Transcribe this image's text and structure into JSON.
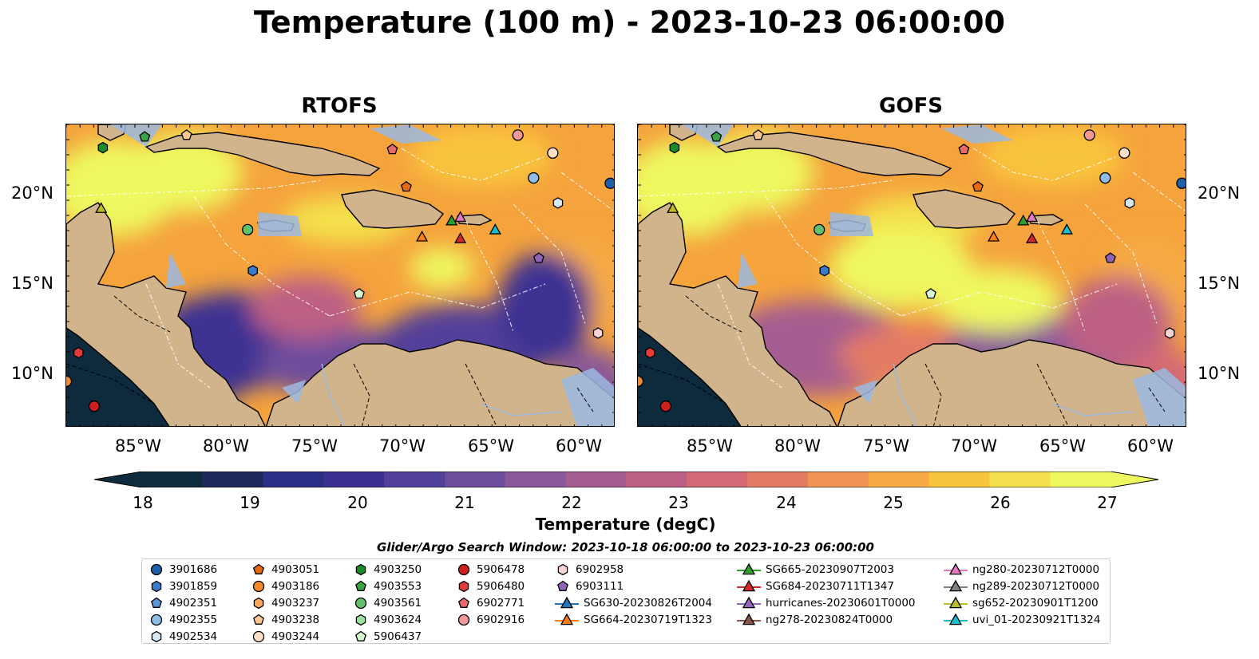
{
  "title": "Temperature (100 m) - 2023-10-23 06:00:00",
  "panels": [
    {
      "name": "RTOFS"
    },
    {
      "name": "GOFS"
    }
  ],
  "lat_labels": [
    "20°N",
    "15°N",
    "10°N"
  ],
  "lon_labels": [
    "85°W",
    "80°W",
    "75°W",
    "70°W",
    "65°W",
    "60°W"
  ],
  "colorbar": {
    "label": "Temperature (degC)",
    "ticks": [
      "18",
      "19",
      "20",
      "21",
      "22",
      "23",
      "24",
      "25",
      "26",
      "27"
    ],
    "range": [
      18,
      27
    ],
    "colors": [
      "#0e2a3d",
      "#1f2a5a",
      "#2b2f86",
      "#3c3192",
      "#53409a",
      "#6e4e9c",
      "#8a5899",
      "#a45d90",
      "#bd6184",
      "#d36a75",
      "#e47c63",
      "#f19352",
      "#f7aa45",
      "#f9c43e",
      "#f4e04c",
      "#eef85f"
    ]
  },
  "legend": {
    "title": "Glider/Argo Search Window: 2023-10-18 06:00:00 to 2023-10-23 06:00:00",
    "columns": [
      [
        {
          "label": "3901686",
          "marker": "circle",
          "color": "#1f5fa8"
        },
        {
          "label": "3901859",
          "marker": "hexagon",
          "color": "#3a7bc8"
        },
        {
          "label": "4902351",
          "marker": "pentagon",
          "color": "#5b95d6"
        },
        {
          "label": "4902355",
          "marker": "circle",
          "color": "#8ebde9"
        },
        {
          "label": "4902534",
          "marker": "hexagon",
          "color": "#d7e8f7"
        }
      ],
      [
        {
          "label": "4903051",
          "marker": "pentagon",
          "color": "#e86a10"
        },
        {
          "label": "4903186",
          "marker": "circle",
          "color": "#f58a2c"
        },
        {
          "label": "4903237",
          "marker": "hexagon",
          "color": "#f9a55e"
        },
        {
          "label": "4903238",
          "marker": "pentagon",
          "color": "#fbc593"
        },
        {
          "label": "4903244",
          "marker": "circle",
          "color": "#fde0c5"
        }
      ],
      [
        {
          "label": "4903250",
          "marker": "hexagon",
          "color": "#1e8a2a"
        },
        {
          "label": "4903553",
          "marker": "pentagon",
          "color": "#3aa344"
        },
        {
          "label": "4903561",
          "marker": "circle",
          "color": "#62c06a"
        },
        {
          "label": "4903624",
          "marker": "hexagon",
          "color": "#9be09e"
        },
        {
          "label": "5906437",
          "marker": "pentagon",
          "color": "#d6f7cf"
        }
      ],
      [
        {
          "label": "5906478",
          "marker": "circle",
          "color": "#cc1f1f"
        },
        {
          "label": "5906480",
          "marker": "hexagon",
          "color": "#e23b3b"
        },
        {
          "label": "6902771",
          "marker": "pentagon",
          "color": "#e96a6a"
        },
        {
          "label": "6902916",
          "marker": "circle",
          "color": "#f29898"
        }
      ],
      [
        {
          "label": "6902958",
          "marker": "hexagon",
          "color": "#fbd5d5"
        },
        {
          "label": "6903111",
          "marker": "pentagon",
          "color": "#8e63b8"
        },
        {
          "label": "SG630-20230826T2004",
          "marker": "triangle-line",
          "color": "#1f77b4"
        },
        {
          "label": "SG664-20230719T1323",
          "marker": "triangle-line",
          "color": "#ff7f0e"
        }
      ],
      [
        {
          "label": "SG665-20230907T2003",
          "marker": "triangle-line",
          "color": "#2ca02c"
        },
        {
          "label": "SG684-20230711T1347",
          "marker": "triangle-line",
          "color": "#d62728"
        },
        {
          "label": "hurricanes-20230601T0000",
          "marker": "triangle-line",
          "color": "#9467bd"
        },
        {
          "label": "ng278-20230824T0000",
          "marker": "triangle-line",
          "color": "#8c564b"
        }
      ],
      [
        {
          "label": "ng280-20230712T0000",
          "marker": "triangle-line",
          "color": "#e377c2"
        },
        {
          "label": "ng289-20230712T0000",
          "marker": "triangle-line",
          "color": "#7f7f7f"
        },
        {
          "label": "sg652-20230901T1200",
          "marker": "triangle-line",
          "color": "#bcbd22"
        },
        {
          "label": "uvi_01-20230921T1324",
          "marker": "triangle-line",
          "color": "#17becf"
        }
      ]
    ]
  },
  "map_colors": {
    "ocean_warm": "#f5a33c",
    "land": "#d2b48c",
    "shelf": "#9bb8e0",
    "deep_pacific": "#0e2a3d"
  },
  "map_extent": {
    "lon": [
      -89.5,
      -58
    ],
    "lat": [
      7,
      24
    ]
  },
  "stations": [
    {
      "id": "4903250",
      "lon": -87.4,
      "lat": 22.7
    },
    {
      "id": "4903553",
      "lon": -85.0,
      "lat": 23.3
    },
    {
      "id": "4903238",
      "lon": -82.6,
      "lat": 23.4
    },
    {
      "id": "6902916",
      "lon": -63.6,
      "lat": 23.4
    },
    {
      "id": "4903244",
      "lon": -61.6,
      "lat": 22.4
    },
    {
      "id": "4902355",
      "lon": -62.7,
      "lat": 21.0
    },
    {
      "id": "3901686",
      "lon": -58.3,
      "lat": 20.7
    },
    {
      "id": "6902771",
      "lon": -70.8,
      "lat": 22.6
    },
    {
      "id": "4903051",
      "lon": -70.0,
      "lat": 20.5
    },
    {
      "id": "4902534",
      "lon": -61.3,
      "lat": 19.6
    },
    {
      "id": "4903561",
      "lon": -79.1,
      "lat": 18.1
    },
    {
      "id": "3901859",
      "lon": -78.8,
      "lat": 15.8
    },
    {
      "id": "6903111",
      "lon": -62.4,
      "lat": 16.5
    },
    {
      "id": "5906437",
      "lon": -72.7,
      "lat": 14.5
    },
    {
      "id": "6902958",
      "lon": -59.0,
      "lat": 12.3
    },
    {
      "id": "5906480",
      "lon": -88.8,
      "lat": 11.2
    },
    {
      "id": "4903186",
      "lon": -89.5,
      "lat": 9.6
    },
    {
      "id": "5906478",
      "lon": -87.9,
      "lat": 8.2
    },
    {
      "id": "sg652-20230901T1200",
      "lon": -87.5,
      "lat": 19.3
    },
    {
      "id": "SG664-20230719T1323",
      "lon": -69.1,
      "lat": 17.7
    },
    {
      "id": "SG684-20230711T1347",
      "lon": -66.9,
      "lat": 17.6
    },
    {
      "id": "SG665-20230907T2003",
      "lon": -67.4,
      "lat": 18.6
    },
    {
      "id": "ng280-20230712T0000",
      "lon": -66.9,
      "lat": 18.8
    },
    {
      "id": "uvi_01-20230921T1324",
      "lon": -64.9,
      "lat": 18.1
    }
  ]
}
